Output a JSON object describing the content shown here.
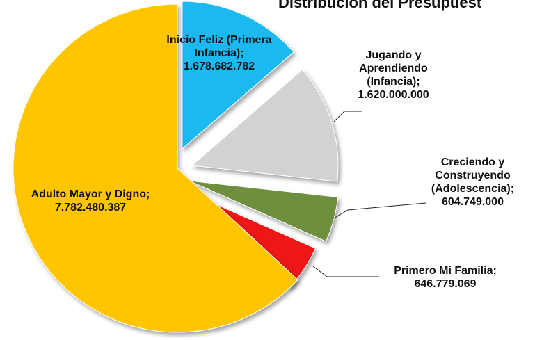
{
  "chart_data": {
    "type": "pie",
    "title": "Distribución del Presupuest",
    "categories": [
      "Inicio Feliz (Primera Infancia);",
      "Jugando y Aprendiendo (Infancia);",
      "Creciendo y Construyendo (Adolescencia);",
      "Primero Mi Familia;",
      "Adulto Mayor y Digno;"
    ],
    "values": [
      1678682782,
      1620000000,
      604749000,
      646779069,
      7782480387
    ],
    "value_labels": [
      "1.678.682.782",
      "1.620.000.000",
      "604.749.000",
      "646.779.069",
      "7.782.480.387"
    ],
    "colors": [
      "#1cb9f0",
      "#d2d2d2",
      "#6e8f3c",
      "#ee1515",
      "#ffc600"
    ]
  }
}
